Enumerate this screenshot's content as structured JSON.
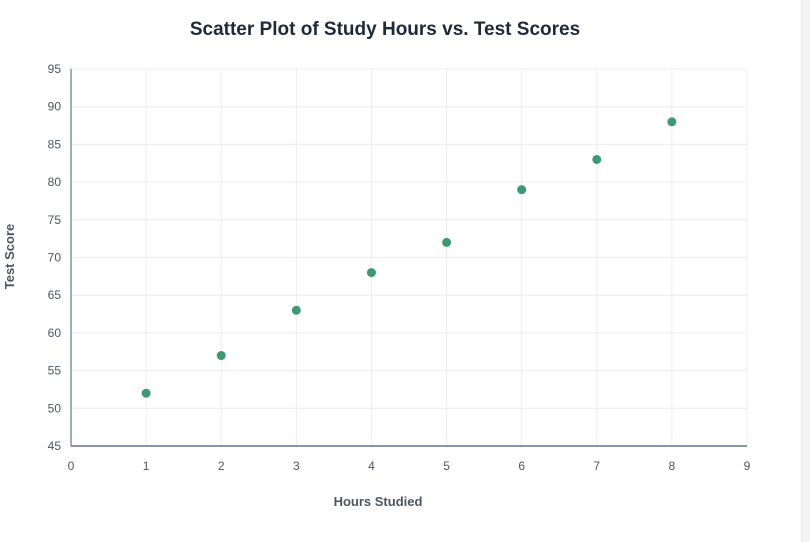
{
  "chart_data": {
    "type": "scatter",
    "title": "Scatter Plot of Study Hours vs. Test Scores",
    "xlabel": "Hours Studied",
    "ylabel": "Test Score",
    "xlim": [
      0,
      9
    ],
    "ylim": [
      45,
      95
    ],
    "x_ticks": [
      0,
      1,
      2,
      3,
      4,
      5,
      6,
      7,
      8,
      9
    ],
    "y_ticks": [
      45,
      50,
      55,
      60,
      65,
      70,
      75,
      80,
      85,
      90,
      95
    ],
    "grid": true,
    "legend": "none",
    "series": [
      {
        "x": [
          1,
          2,
          3,
          4,
          5,
          6,
          7,
          8
        ],
        "y": [
          52,
          57,
          63,
          68,
          72,
          79,
          83,
          88
        ]
      }
    ]
  },
  "colors": {
    "point": "#3d9970",
    "grid": "#ececec",
    "axis": "#64748b",
    "text": "#4b5563",
    "title": "#1f2937"
  }
}
